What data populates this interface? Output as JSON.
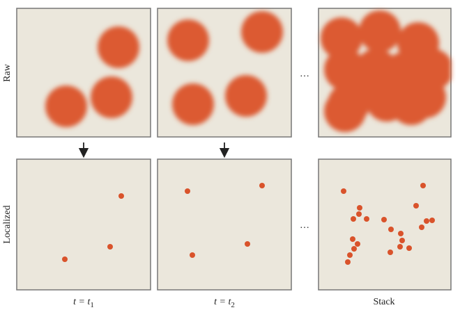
{
  "rows": {
    "top": "Raw",
    "bottom": "Localized"
  },
  "columns": [
    {
      "main": "t = t",
      "sub": "1"
    },
    {
      "main": "t = t",
      "sub": "2"
    },
    {
      "main": "Stack"
    }
  ],
  "ellipsis": "…"
}
